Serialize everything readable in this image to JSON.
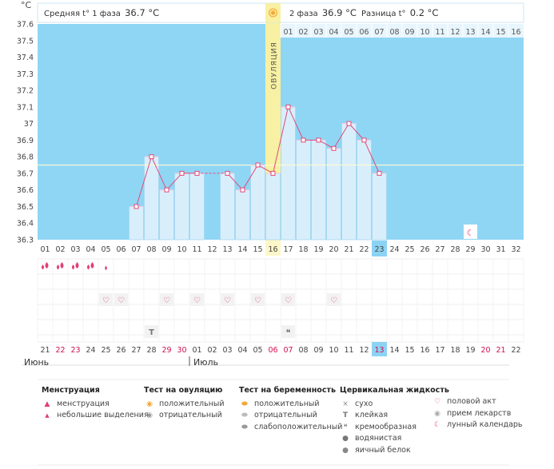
{
  "header": {
    "unit": "°C",
    "phase1_label": "Средняя t° 1 фаза",
    "phase1_value": "36.7 °C",
    "phase2_label": "2 фаза",
    "phase2_value": "36.9 °C",
    "diff_label": "Разница t°",
    "diff_value": "0.2 °C",
    "ovulation_label": "ОВУЛЯЦИЯ"
  },
  "months": {
    "june": "Июнь",
    "july": "Июль"
  },
  "colors": {
    "plot_bg": "#8fd6f5",
    "bar_fill": "#d8effb",
    "bar_stroke": "#a5d6f2",
    "line": "#e24a7a",
    "ovulation_band": "#f8f0a2",
    "ovulation_band_light": "#fdf6c8",
    "coverline": "#fffbd0",
    "highlight": "#8cd3f3",
    "red_text": "#d0104e"
  },
  "chart_data": {
    "type": "line",
    "xlabel": "",
    "ylabel": "°C",
    "ylim": [
      36.3,
      37.6
    ],
    "yticks": [
      "36.3",
      "36.4",
      "36.5",
      "36.6",
      "36.7",
      "36.8",
      "36.9",
      "37",
      "37.1",
      "37.2",
      "37.3",
      "37.4",
      "37.5",
      "37.6"
    ],
    "cycle_days": [
      "01",
      "02",
      "03",
      "04",
      "05",
      "06",
      "07",
      "08",
      "09",
      "10",
      "11",
      "12",
      "13",
      "14",
      "15",
      "16",
      "17",
      "18",
      "19",
      "20",
      "21",
      "22",
      "23",
      "24",
      "25",
      "26",
      "27",
      "28",
      "29",
      "30",
      "31",
      "32"
    ],
    "calendar_dates": [
      "21",
      "22",
      "23",
      "24",
      "25",
      "26",
      "27",
      "28",
      "29",
      "30",
      "01",
      "02",
      "03",
      "04",
      "05",
      "06",
      "07",
      "08",
      "09",
      "10",
      "11",
      "12",
      "13",
      "14",
      "15",
      "16",
      "17",
      "18",
      "19",
      "20",
      "21",
      "22"
    ],
    "red_date_indices": [
      1,
      2,
      8,
      9,
      15,
      16,
      22,
      29,
      30
    ],
    "today_index": 22,
    "ovulation_day_index": 15,
    "coverline": 36.75,
    "post_ovulation_days": [
      "01",
      "02",
      "03",
      "04",
      "05",
      "06",
      "07",
      "08",
      "09",
      "10",
      "11",
      "12",
      "13",
      "14",
      "15",
      "16"
    ],
    "series": [
      {
        "values": [
          null,
          null,
          null,
          null,
          null,
          null,
          36.5,
          36.8,
          36.6,
          36.7,
          36.7,
          null,
          36.7,
          36.6,
          36.75,
          36.7,
          37.1,
          36.9,
          36.9,
          36.85,
          37.0,
          36.9,
          36.7,
          null,
          null,
          null,
          null,
          null,
          null,
          null,
          null,
          null
        ],
        "dashed_gap_between": [
          10,
          12
        ]
      }
    ],
    "annotations": {
      "menstruation_heavy_days": [
        0,
        1,
        2,
        3
      ],
      "menstruation_light_days": [
        4
      ],
      "intercourse_days": [
        4,
        5,
        8,
        10,
        12,
        14,
        16,
        19
      ],
      "cervical_sticky_days": [
        7
      ],
      "cervical_creamy_days": [
        16
      ],
      "lunar_days": [
        28
      ]
    }
  },
  "legend": {
    "menstruation": {
      "title": "Менструация",
      "items": [
        "менструация",
        "небольшие выделения"
      ]
    },
    "ovulation_test": {
      "title": "Тест на овуляцию",
      "items": [
        "положительный",
        "отрицательный"
      ]
    },
    "pregnancy_test": {
      "title": "Тест на беременность",
      "items": [
        "положительный",
        "отрицательный",
        "слабоположительный"
      ]
    },
    "cervical": {
      "title": "Цервикальная жидкость",
      "items": [
        "сухо",
        "клейкая",
        "кремообразная",
        "водянистая",
        "яичный белок"
      ]
    },
    "other": {
      "items": [
        "половой акт",
        "прием лекарств",
        "лунный календарь"
      ]
    }
  }
}
